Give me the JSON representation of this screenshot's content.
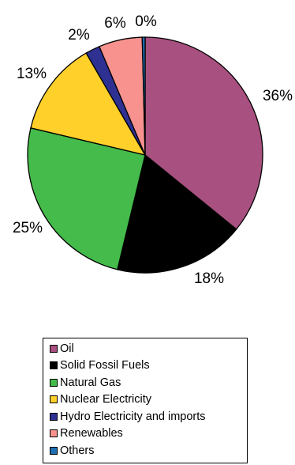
{
  "chart_data": {
    "type": "pie",
    "slices": [
      {
        "label": "Oil",
        "value": 36,
        "percent_label": "36%",
        "color": "#A8507F"
      },
      {
        "label": "Solid Fossil Fuels",
        "value": 18,
        "percent_label": "18%",
        "color": "#000000"
      },
      {
        "label": "Natural Gas",
        "value": 25,
        "percent_label": "25%",
        "color": "#44BB4A"
      },
      {
        "label": "Nuclear Electricity",
        "value": 13,
        "percent_label": "13%",
        "color": "#FFD02A"
      },
      {
        "label": "Hydro Electricity and imports",
        "value": 2,
        "percent_label": "2%",
        "color": "#2E3192"
      },
      {
        "label": "Renewables",
        "value": 6,
        "percent_label": "6%",
        "color": "#F7928F"
      },
      {
        "label": "Others",
        "value": 0.4,
        "percent_label": "0%",
        "color": "#1F6FB2"
      }
    ],
    "legend_position": "bottom"
  }
}
